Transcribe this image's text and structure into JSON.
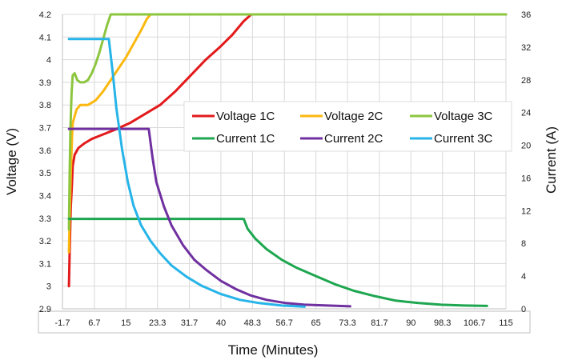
{
  "chart_data": {
    "type": "line",
    "xlabel": "Time (Minutes)",
    "ylabel": "Voltage (V)",
    "y2label": "Current (A)",
    "xlim": [
      -1.7,
      115
    ],
    "ylim": [
      2.9,
      4.2
    ],
    "y2lim": [
      0,
      36
    ],
    "x_ticks": [
      "-1.7",
      "6.7",
      "15",
      "23.3",
      "31.7",
      "40",
      "48.3",
      "56.7",
      "65",
      "73.3",
      "81.7",
      "90",
      "98.3",
      "106.7",
      "115"
    ],
    "y_ticks": [
      "2.9",
      "3",
      "3.1",
      "3.2",
      "3.3",
      "3.4",
      "3.5",
      "3.6",
      "3.7",
      "3.8",
      "3.9",
      "4",
      "4.1",
      "4.2"
    ],
    "y2_ticks": [
      "0",
      "4",
      "8",
      "12",
      "16",
      "20",
      "24",
      "28",
      "32",
      "36"
    ],
    "grid": true,
    "legend_position": "center-right",
    "series": [
      {
        "name": "Voltage 1C",
        "axis": "left",
        "color": "#e31a1c",
        "points": [
          [
            0,
            3.0
          ],
          [
            0.2,
            3.15
          ],
          [
            0.5,
            3.35
          ],
          [
            0.8,
            3.45
          ],
          [
            1,
            3.53
          ],
          [
            1.5,
            3.58
          ],
          [
            2.5,
            3.61
          ],
          [
            4,
            3.63
          ],
          [
            6,
            3.65
          ],
          [
            9,
            3.67
          ],
          [
            12,
            3.69
          ],
          [
            16,
            3.72
          ],
          [
            20,
            3.76
          ],
          [
            24,
            3.8
          ],
          [
            28,
            3.86
          ],
          [
            32,
            3.93
          ],
          [
            36,
            4.0
          ],
          [
            40,
            4.06
          ],
          [
            43,
            4.11
          ],
          [
            46,
            4.17
          ],
          [
            48,
            4.2
          ],
          [
            115,
            4.2
          ]
        ]
      },
      {
        "name": "Voltage 2C",
        "axis": "left",
        "color": "#fbb80f",
        "points": [
          [
            0,
            3.15
          ],
          [
            0.2,
            3.3
          ],
          [
            0.5,
            3.5
          ],
          [
            0.8,
            3.65
          ],
          [
            1,
            3.72
          ],
          [
            2,
            3.78
          ],
          [
            3,
            3.8
          ],
          [
            5,
            3.8
          ],
          [
            7,
            3.82
          ],
          [
            9,
            3.86
          ],
          [
            11,
            3.91
          ],
          [
            13,
            3.96
          ],
          [
            15,
            4.01
          ],
          [
            17,
            4.07
          ],
          [
            19,
            4.13
          ],
          [
            20.5,
            4.18
          ],
          [
            21.5,
            4.2
          ],
          [
            115,
            4.2
          ]
        ]
      },
      {
        "name": "Voltage 3C",
        "axis": "left",
        "color": "#8cc63f",
        "points": [
          [
            0,
            3.25
          ],
          [
            0.2,
            3.5
          ],
          [
            0.4,
            3.7
          ],
          [
            0.7,
            3.85
          ],
          [
            1,
            3.93
          ],
          [
            1.5,
            3.94
          ],
          [
            2.2,
            3.91
          ],
          [
            3,
            3.9
          ],
          [
            4,
            3.9
          ],
          [
            5,
            3.91
          ],
          [
            6,
            3.94
          ],
          [
            7,
            3.98
          ],
          [
            8,
            4.03
          ],
          [
            9,
            4.09
          ],
          [
            10,
            4.15
          ],
          [
            11,
            4.2
          ],
          [
            115,
            4.2
          ]
        ]
      },
      {
        "name": "Current 1C",
        "axis": "right",
        "color": "#1ea650",
        "points": [
          [
            0,
            11
          ],
          [
            46,
            11
          ],
          [
            47,
            9.8
          ],
          [
            49,
            8.6
          ],
          [
            52,
            7.3
          ],
          [
            56,
            6.0
          ],
          [
            60,
            5.0
          ],
          [
            65,
            4.0
          ],
          [
            70,
            3.0
          ],
          [
            75,
            2.2
          ],
          [
            80,
            1.6
          ],
          [
            86,
            1.0
          ],
          [
            92,
            0.7
          ],
          [
            98,
            0.5
          ],
          [
            104,
            0.4
          ],
          [
            110,
            0.35
          ]
        ]
      },
      {
        "name": "Current 2C",
        "axis": "right",
        "color": "#7030a0",
        "points": [
          [
            0,
            22
          ],
          [
            21,
            22
          ],
          [
            22,
            18.5
          ],
          [
            23,
            15.5
          ],
          [
            25,
            12.5
          ],
          [
            27,
            10.2
          ],
          [
            30,
            7.8
          ],
          [
            33,
            6.0
          ],
          [
            36,
            4.8
          ],
          [
            40,
            3.4
          ],
          [
            44,
            2.4
          ],
          [
            48,
            1.6
          ],
          [
            52,
            1.1
          ],
          [
            57,
            0.7
          ],
          [
            62,
            0.5
          ],
          [
            68,
            0.4
          ],
          [
            74,
            0.3
          ]
        ]
      },
      {
        "name": "Current 3C",
        "axis": "right",
        "color": "#27b4e8",
        "points": [
          [
            0,
            33
          ],
          [
            10.5,
            33
          ],
          [
            11.5,
            29
          ],
          [
            12.5,
            24.5
          ],
          [
            14,
            19.5
          ],
          [
            15.5,
            15.5
          ],
          [
            17,
            12.6
          ],
          [
            19,
            10.2
          ],
          [
            21.5,
            8.3
          ],
          [
            24,
            6.8
          ],
          [
            27,
            5.3
          ],
          [
            31,
            3.9
          ],
          [
            35,
            2.8
          ],
          [
            40,
            1.8
          ],
          [
            45,
            1.1
          ],
          [
            50,
            0.7
          ],
          [
            56,
            0.4
          ],
          [
            62,
            0.25
          ]
        ]
      }
    ]
  }
}
